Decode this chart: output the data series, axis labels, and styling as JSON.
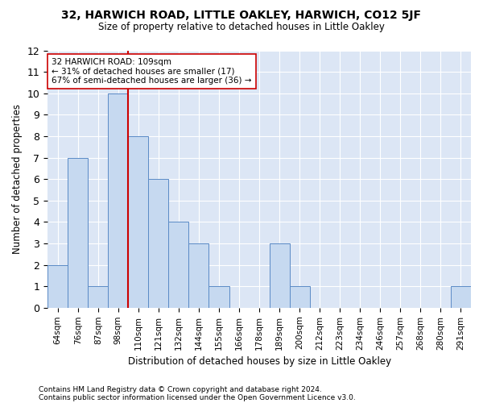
{
  "title1": "32, HARWICH ROAD, LITTLE OAKLEY, HARWICH, CO12 5JF",
  "title2": "Size of property relative to detached houses in Little Oakley",
  "xlabel": "Distribution of detached houses by size in Little Oakley",
  "ylabel": "Number of detached properties",
  "footnote1": "Contains HM Land Registry data © Crown copyright and database right 2024.",
  "footnote2": "Contains public sector information licensed under the Open Government Licence v3.0.",
  "annotation_line1": "32 HARWICH ROAD: 109sqm",
  "annotation_line2": "← 31% of detached houses are smaller (17)",
  "annotation_line3": "67% of semi-detached houses are larger (36) →",
  "bar_labels": [
    "64sqm",
    "76sqm",
    "87sqm",
    "98sqm",
    "110sqm",
    "121sqm",
    "132sqm",
    "144sqm",
    "155sqm",
    "166sqm",
    "178sqm",
    "189sqm",
    "200sqm",
    "212sqm",
    "223sqm",
    "234sqm",
    "246sqm",
    "257sqm",
    "268sqm",
    "280sqm",
    "291sqm"
  ],
  "bar_values": [
    2,
    7,
    1,
    10,
    8,
    6,
    4,
    3,
    1,
    0,
    0,
    3,
    1,
    0,
    0,
    0,
    0,
    0,
    0,
    0,
    1
  ],
  "bar_color": "#c6d9f0",
  "bar_edge_color": "#5a8ac6",
  "red_line_index": 4,
  "red_line_color": "#cc0000",
  "background_color": "#dce6f5",
  "fig_background_color": "#ffffff",
  "grid_color": "#ffffff",
  "ylim": [
    0,
    12
  ],
  "yticks": [
    0,
    1,
    2,
    3,
    4,
    5,
    6,
    7,
    8,
    9,
    10,
    11,
    12
  ]
}
